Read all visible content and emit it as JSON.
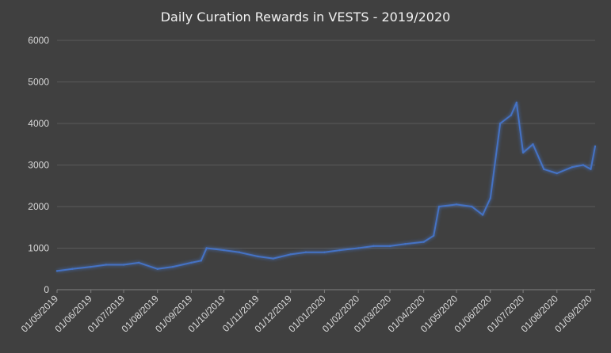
{
  "chart_data": {
    "type": "line",
    "title": "Daily Curation Rewards in VESTS - 2019/2020",
    "xlabel": "",
    "ylabel": "",
    "ylim": [
      0,
      6000
    ],
    "yticks": [
      "0",
      "1000",
      "2000",
      "3000",
      "4000",
      "5000",
      "6000"
    ],
    "x_tick_labels": [
      "01/05/2019",
      "01/06/2019",
      "01/07/2019",
      "01/08/2019",
      "01/09/2019",
      "01/10/2019",
      "01/11/2019",
      "01/12/2019",
      "01/01/2020",
      "01/02/2020",
      "01/03/2020",
      "01/04/2020",
      "01/05/2020",
      "01/06/2020",
      "01/07/2020",
      "01/08/2020",
      "01/09/2020"
    ],
    "grid": "horizontal",
    "series": [
      {
        "color": "#4472c4",
        "x": [
          "2019-05-01",
          "2019-05-15",
          "2019-06-01",
          "2019-06-15",
          "2019-07-01",
          "2019-07-15",
          "2019-08-01",
          "2019-08-15",
          "2019-09-01",
          "2019-09-10",
          "2019-09-15",
          "2019-10-01",
          "2019-10-15",
          "2019-11-01",
          "2019-11-15",
          "2019-12-01",
          "2019-12-15",
          "2020-01-01",
          "2020-01-15",
          "2020-02-01",
          "2020-02-15",
          "2020-03-01",
          "2020-03-15",
          "2020-04-01",
          "2020-04-10",
          "2020-04-15",
          "2020-05-01",
          "2020-05-15",
          "2020-05-25",
          "2020-06-01",
          "2020-06-10",
          "2020-06-20",
          "2020-06-25",
          "2020-07-01",
          "2020-07-10",
          "2020-07-20",
          "2020-08-01",
          "2020-08-15",
          "2020-08-25",
          "2020-09-01",
          "2020-09-05"
        ],
        "values": [
          450,
          500,
          550,
          600,
          600,
          650,
          500,
          550,
          650,
          700,
          1000,
          950,
          900,
          800,
          750,
          850,
          900,
          900,
          950,
          1000,
          1050,
          1050,
          1100,
          1150,
          1300,
          2000,
          2050,
          2000,
          1800,
          2200,
          4000,
          4200,
          4500,
          3300,
          3500,
          2900,
          2800,
          2950,
          3000,
          2900,
          3450
        ]
      }
    ]
  }
}
